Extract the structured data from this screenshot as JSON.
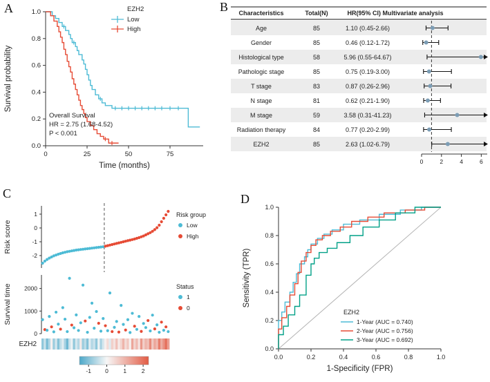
{
  "figure": {
    "panels": {
      "a": "A",
      "b": "B",
      "c": "C",
      "d": "D"
    }
  },
  "colors": {
    "teal": "#4DBBD5",
    "red": "#E64B35",
    "green": "#00A087",
    "forest_dot": "#7C9DB5",
    "diagonal_gray": "#b3b3b3",
    "heat_blue": "#4DA8C9",
    "heat_white": "#F7F7F7",
    "heat_red": "#E25C45",
    "stripe": "#ececec",
    "axis": "#333333"
  },
  "chart_data": [
    {
      "id": "km_survival",
      "type": "line",
      "xlabel": "Time (months)",
      "ylabel": "Survival probability",
      "xlim": [
        0,
        95
      ],
      "ylim": [
        0,
        1
      ],
      "xticks": [
        0,
        25,
        50,
        75
      ],
      "yticks": [
        0,
        0.2,
        0.4,
        0.6,
        0.8,
        1
      ],
      "legend_title": "EZH2",
      "annotation": [
        "Overall Survival",
        "HR = 2.75 (1.68-4.52)",
        "P < 0.001"
      ],
      "series": [
        {
          "name": "Low",
          "color_key": "teal",
          "x": [
            0,
            4,
            6,
            8,
            10,
            12,
            14,
            15,
            16,
            18,
            19,
            20,
            22,
            23,
            24,
            25,
            26,
            27,
            28,
            30,
            32,
            34,
            36,
            40,
            86,
            93
          ],
          "y": [
            1,
            0.97,
            0.95,
            0.92,
            0.89,
            0.86,
            0.83,
            0.8,
            0.77,
            0.74,
            0.71,
            0.68,
            0.64,
            0.61,
            0.57,
            0.53,
            0.49,
            0.45,
            0.42,
            0.38,
            0.35,
            0.32,
            0.3,
            0.28,
            0.14,
            0.14
          ],
          "censor_x": [
            11,
            17,
            33,
            42,
            46,
            50,
            54,
            58,
            62,
            66,
            70,
            75,
            80
          ],
          "censor_y": [
            0.89,
            0.77,
            0.35,
            0.28,
            0.28,
            0.28,
            0.28,
            0.28,
            0.28,
            0.28,
            0.28,
            0.28,
            0.28
          ]
        },
        {
          "name": "High",
          "color_key": "red",
          "x": [
            0,
            3,
            5,
            7,
            8,
            9,
            10,
            11,
            12,
            13,
            14,
            15,
            16,
            17,
            18,
            19,
            20,
            21,
            22,
            23,
            24,
            25,
            27,
            29,
            31,
            33,
            35,
            38,
            44
          ],
          "y": [
            1,
            0.97,
            0.93,
            0.89,
            0.85,
            0.81,
            0.77,
            0.72,
            0.68,
            0.63,
            0.59,
            0.55,
            0.5,
            0.46,
            0.42,
            0.38,
            0.34,
            0.3,
            0.27,
            0.24,
            0.21,
            0.18,
            0.15,
            0.12,
            0.09,
            0.07,
            0.05,
            0.02,
            0.02
          ],
          "censor_x": [
            36,
            40
          ],
          "censor_y": [
            0.05,
            0.02
          ]
        }
      ]
    },
    {
      "id": "multivariate_forest",
      "type": "table",
      "headers": [
        "Characteristics",
        "Total(N)",
        "HR(95% CI) Multivariate analysis"
      ],
      "xticks": [
        0,
        2,
        4,
        6
      ],
      "ref_line": 1,
      "xmax": 6.6,
      "rows": [
        {
          "label": "Age",
          "n": "85",
          "hr_text": "1.10 (0.45-2.66)",
          "hr": 1.1,
          "lo": 0.45,
          "hi": 2.66
        },
        {
          "label": "Gender",
          "n": "85",
          "hr_text": "0.46 (0.12-1.72)",
          "hr": 0.46,
          "lo": 0.12,
          "hi": 1.72
        },
        {
          "label": "Histological type",
          "n": "58",
          "hr_text": "5.96 (0.55-64.67)",
          "hr": 5.96,
          "lo": 0.55,
          "hi": 64.67
        },
        {
          "label": "Pathologic stage",
          "n": "85",
          "hr_text": "0.75 (0.19-3.00)",
          "hr": 0.75,
          "lo": 0.19,
          "hi": 3.0
        },
        {
          "label": "T stage",
          "n": "83",
          "hr_text": "0.87 (0.26-2.96)",
          "hr": 0.87,
          "lo": 0.26,
          "hi": 2.96
        },
        {
          "label": "N stage",
          "n": "81",
          "hr_text": "0.62 (0.21-1.90)",
          "hr": 0.62,
          "lo": 0.21,
          "hi": 1.9
        },
        {
          "label": "M stage",
          "n": "59",
          "hr_text": "3.58 (0.31-41.23)",
          "hr": 3.58,
          "lo": 0.31,
          "hi": 41.23
        },
        {
          "label": "Radiation therapy",
          "n": "84",
          "hr_text": "0.77 (0.20-2.99)",
          "hr": 0.77,
          "lo": 0.2,
          "hi": 2.99
        },
        {
          "label": "EZH2",
          "n": "85",
          "hr_text": "2.63 (1.02-6.79)",
          "hr": 2.63,
          "lo": 1.02,
          "hi": 6.79
        }
      ]
    },
    {
      "id": "risk_distribution",
      "type": "scatter",
      "ylabel_risk": "Risk score",
      "ylabel_surv": "Survival time",
      "heatmap_label": "EZH2",
      "risk_yticks": [
        -2,
        -1,
        0,
        1
      ],
      "surv_yticks": [
        0,
        1000,
        2000
      ],
      "risk_legend_title": "Risk group",
      "risk_legend": [
        "Low",
        "High"
      ],
      "status_legend_title": "Status",
      "status_legend": [
        "1",
        "0"
      ],
      "split_index": 28,
      "risk_scores": [
        -2.55,
        -2.4,
        -2.28,
        -2.18,
        -2.1,
        -2.02,
        -1.96,
        -1.9,
        -1.85,
        -1.8,
        -1.76,
        -1.72,
        -1.69,
        -1.66,
        -1.63,
        -1.6,
        -1.58,
        -1.56,
        -1.54,
        -1.52,
        -1.5,
        -1.48,
        -1.46,
        -1.44,
        -1.42,
        -1.4,
        -1.38,
        -1.36,
        -1.32,
        -1.28,
        -1.24,
        -1.2,
        -1.16,
        -1.12,
        -1.08,
        -1.04,
        -1.0,
        -0.96,
        -0.92,
        -0.88,
        -0.84,
        -0.8,
        -0.75,
        -0.7,
        -0.64,
        -0.58,
        -0.5,
        -0.42,
        -0.34,
        -0.24,
        -0.12,
        0.02,
        0.2,
        0.45,
        0.7,
        0.95,
        1.2
      ],
      "surv_times": [
        620,
        180,
        150,
        760,
        300,
        80,
        950,
        420,
        200,
        1150,
        640,
        90,
        2450,
        380,
        260,
        830,
        140,
        480,
        2150,
        560,
        60,
        720,
        1350,
        240,
        980,
        460,
        110,
        670,
        350,
        130,
        1800,
        90,
        280,
        540,
        70,
        1250,
        410,
        160,
        620,
        50,
        900,
        330,
        190,
        760,
        100,
        450,
        270,
        580,
        120,
        820,
        210,
        390,
        60,
        510,
        150,
        300,
        90
      ],
      "surv_status": [
        1,
        0,
        1,
        1,
        0,
        1,
        1,
        1,
        0,
        1,
        1,
        1,
        1,
        0,
        1,
        1,
        1,
        1,
        1,
        0,
        1,
        1,
        1,
        1,
        1,
        0,
        1,
        1,
        0,
        1,
        1,
        0,
        1,
        1,
        0,
        1,
        1,
        0,
        1,
        1,
        1,
        0,
        1,
        1,
        0,
        1,
        1,
        0,
        1,
        1,
        0,
        1,
        1,
        0,
        1,
        0,
        1
      ],
      "heatmap_values": [
        -0.9,
        -0.4,
        -1.1,
        -0.6,
        0.1,
        -0.8,
        -0.3,
        -1.0,
        -0.5,
        -0.2,
        -0.7,
        -1.2,
        -0.4,
        -0.1,
        -0.9,
        -0.3,
        -0.6,
        0.2,
        -0.8,
        -0.5,
        -1.0,
        -0.2,
        -0.6,
        -0.4,
        -0.9,
        -0.1,
        -0.7,
        -0.3,
        0.1,
        0.4,
        -0.2,
        0.6,
        0.3,
        0.8,
        0.2,
        0.5,
        1.0,
        0.4,
        0.7,
        0.1,
        1.2,
        0.5,
        0.9,
        0.3,
        1.4,
        0.6,
        1.0,
        0.8,
        1.6,
        0.7,
        1.2,
        0.9,
        1.8,
        1.1,
        1.5,
        2.0,
        1.3
      ],
      "colorbar_ticks": [
        -1,
        0,
        1,
        2
      ],
      "heat_range": [
        -1.5,
        2.3
      ]
    },
    {
      "id": "roc",
      "type": "line",
      "xlabel": "1-Specificity (FPR)",
      "ylabel": "Sensitivity (TPR)",
      "xticks": [
        0,
        0.2,
        0.4,
        0.6,
        0.8,
        1
      ],
      "yticks": [
        0,
        0.2,
        0.4,
        0.6,
        0.8,
        1
      ],
      "legend_title": "EZH2",
      "series": [
        {
          "name": "1-Year (AUC = 0.740)",
          "color_key": "teal",
          "x": [
            0,
            0.02,
            0.04,
            0.07,
            0.09,
            0.11,
            0.13,
            0.16,
            0.18,
            0.2,
            0.24,
            0.28,
            0.33,
            0.4,
            0.5,
            0.62,
            0.75,
            0.88,
            1.0
          ],
          "y": [
            0.1,
            0.2,
            0.26,
            0.33,
            0.4,
            0.47,
            0.53,
            0.6,
            0.65,
            0.7,
            0.74,
            0.78,
            0.81,
            0.84,
            0.88,
            0.91,
            0.95,
            0.98,
            1.0
          ]
        },
        {
          "name": "2-Year (AUC = 0.756)",
          "color_key": "red",
          "x": [
            0,
            0.02,
            0.05,
            0.07,
            0.1,
            0.12,
            0.14,
            0.17,
            0.2,
            0.23,
            0.27,
            0.32,
            0.38,
            0.45,
            0.55,
            0.65,
            0.78,
            0.9,
            1.0
          ],
          "y": [
            0.06,
            0.14,
            0.22,
            0.3,
            0.38,
            0.46,
            0.54,
            0.62,
            0.68,
            0.73,
            0.77,
            0.8,
            0.83,
            0.86,
            0.9,
            0.93,
            0.96,
            0.98,
            1.0
          ]
        },
        {
          "name": "3-Year (AUC = 0.692)",
          "color_key": "green",
          "x": [
            0,
            0.03,
            0.06,
            0.1,
            0.13,
            0.17,
            0.2,
            0.22,
            0.25,
            0.3,
            0.36,
            0.44,
            0.52,
            0.62,
            0.72,
            0.84,
            1.0
          ],
          "y": [
            0.04,
            0.1,
            0.16,
            0.24,
            0.3,
            0.38,
            0.52,
            0.6,
            0.64,
            0.68,
            0.71,
            0.75,
            0.8,
            0.86,
            0.91,
            0.96,
            1.0
          ]
        }
      ]
    }
  ]
}
